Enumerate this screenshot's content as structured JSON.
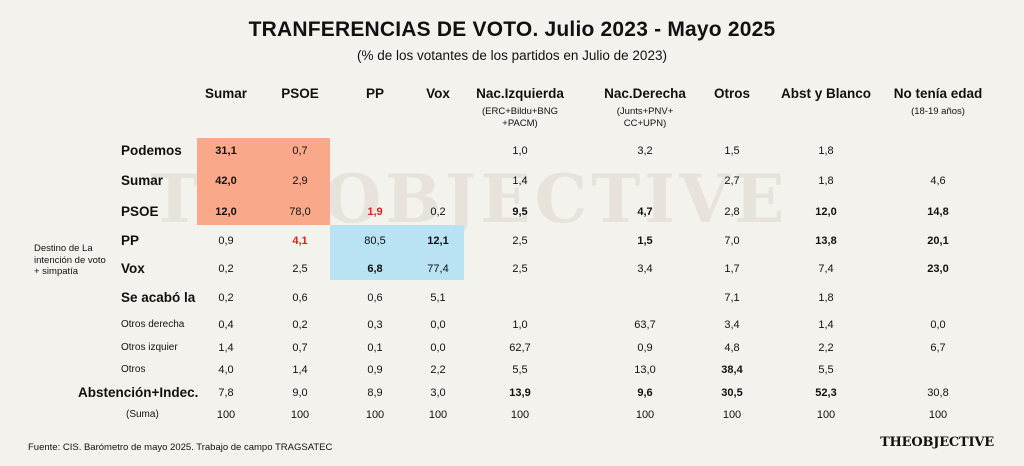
{
  "title": "TRANFERENCIAS DE  VOTO. Julio 2023 - Mayo 2025",
  "subtitle": "(% de los votantes de los partidos en Julio de 2023)",
  "watermark": "THEOBJECTIVE",
  "side_label": "Destino de La intención de voto + simpatía",
  "source": "Fuente: CIS. Barómetro de mayo 2025. Trabajo de campo TRAGSATEC",
  "logo": "THEOBJECTIVE",
  "colors": {
    "orange": "#f9a98a",
    "blue": "#b9e2f2",
    "red": "#e01e1e",
    "background": "#f4f2ed"
  },
  "chart_data": {
    "type": "table",
    "columns": [
      {
        "label": "Sumar",
        "sub": ""
      },
      {
        "label": "PSOE",
        "sub": ""
      },
      {
        "label": "PP",
        "sub": ""
      },
      {
        "label": "Vox",
        "sub": ""
      },
      {
        "label": "Nac.Izquierda",
        "sub": "(ERC+Bildu+BNG\n+PACM)"
      },
      {
        "label": "Nac.Derecha",
        "sub": "(Junts+PNV+\nCC+UPN)"
      },
      {
        "label": "Otros",
        "sub": ""
      },
      {
        "label": "Abst y Blanco",
        "sub": ""
      },
      {
        "label": "No tenía edad",
        "sub": "(18-19 años)"
      }
    ],
    "rows": [
      {
        "label": "Podemos",
        "style": "bold",
        "values": [
          "31,1",
          "0,7",
          "",
          "",
          "1,0",
          "3,2",
          "1,5",
          "1,8",
          ""
        ]
      },
      {
        "label": "Sumar",
        "style": "bold",
        "values": [
          "42,0",
          "2,9",
          "",
          "",
          "1,4",
          "",
          "2,7",
          "1,8",
          "4,6"
        ]
      },
      {
        "label": "PSOE",
        "style": "bold",
        "values": [
          "12,0",
          "78,0",
          "1,9",
          "0,2",
          "9,5",
          "4,7",
          "2,8",
          "12,0",
          "14,8"
        ]
      },
      {
        "label": "PP",
        "style": "bold",
        "values": [
          "0,9",
          "4,1",
          "80,5",
          "12,1",
          "2,5",
          "1,5",
          "7,0",
          "13,8",
          "20,1"
        ]
      },
      {
        "label": "Vox",
        "style": "bold",
        "values": [
          "0,2",
          "2,5",
          "6,8",
          "77,4",
          "2,5",
          "3,4",
          "1,7",
          "7,4",
          "23,0"
        ]
      },
      {
        "label": "Se acabó la",
        "style": "bold",
        "values": [
          "0,2",
          "0,6",
          "0,6",
          "5,1",
          "",
          "",
          "7,1",
          "1,8",
          ""
        ]
      },
      {
        "label": "Otros derecha",
        "style": "small",
        "values": [
          "0,4",
          "0,2",
          "0,3",
          "0,0",
          "1,0",
          "63,7",
          "3,4",
          "1,4",
          "0,0"
        ]
      },
      {
        "label": "Otros izquier",
        "style": "small",
        "values": [
          "1,4",
          "0,7",
          "0,1",
          "0,0",
          "62,7",
          "0,9",
          "4,8",
          "2,2",
          "6,7"
        ]
      },
      {
        "label": "Otros",
        "style": "small",
        "values": [
          "4,0",
          "1,4",
          "0,9",
          "2,2",
          "5,5",
          "13,0",
          "38,4",
          "5,5",
          ""
        ]
      },
      {
        "label": "Abstención+Indec.",
        "style": "bold",
        "values": [
          "7,8",
          "9,0",
          "8,9",
          "3,0",
          "13,9",
          "9,6",
          "30,5",
          "52,3",
          "30,8"
        ]
      },
      {
        "label": "(Suma)",
        "style": "small",
        "values": [
          "100",
          "100",
          "100",
          "100",
          "100",
          "100",
          "100",
          "100",
          "100"
        ]
      }
    ],
    "bold_cells": [
      [
        0,
        0
      ],
      [
        1,
        0
      ],
      [
        2,
        0
      ],
      [
        2,
        4
      ],
      [
        2,
        5
      ],
      [
        2,
        7
      ],
      [
        2,
        8
      ],
      [
        3,
        3
      ],
      [
        3,
        5
      ],
      [
        3,
        7
      ],
      [
        3,
        8
      ],
      [
        4,
        2
      ],
      [
        4,
        8
      ],
      [
        8,
        6
      ],
      [
        9,
        4
      ],
      [
        9,
        5
      ],
      [
        9,
        6
      ],
      [
        9,
        7
      ]
    ],
    "red_cells": [
      [
        2,
        2
      ],
      [
        3,
        1
      ]
    ],
    "highlight_orange": {
      "rows": [
        0,
        2
      ],
      "cols": [
        0,
        1
      ]
    },
    "highlight_blue": {
      "rows": [
        3,
        4
      ],
      "cols": [
        2,
        3
      ]
    }
  }
}
